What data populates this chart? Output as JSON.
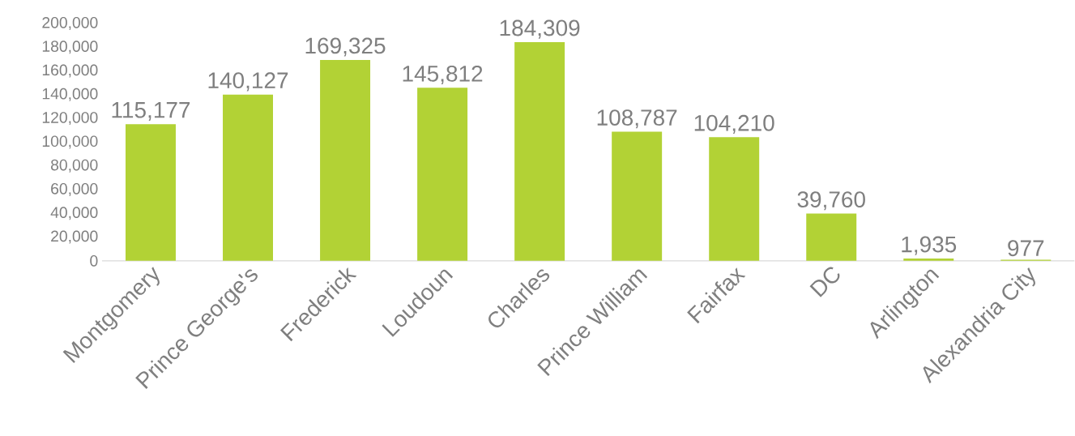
{
  "chart_data": {
    "type": "bar",
    "categories": [
      "Montgomery",
      "Prince George's",
      "Frederick",
      "Loudoun",
      "Charles",
      "Prince William",
      "Fairfax",
      "DC",
      "Arlington",
      "Alexandria City"
    ],
    "values": [
      115177,
      140127,
      169325,
      145812,
      184309,
      108787,
      104210,
      39760,
      1935,
      977
    ],
    "color": "#b2d235",
    "ylim": [
      0,
      200000
    ],
    "yticks": [
      {
        "value": 0,
        "label": "0"
      },
      {
        "value": 20000,
        "label": "20,000"
      },
      {
        "value": 40000,
        "label": "40,000"
      },
      {
        "value": 60000,
        "label": "60,000"
      },
      {
        "value": 80000,
        "label": "80,000"
      },
      {
        "value": 100000,
        "label": "100,000"
      },
      {
        "value": 120000,
        "label": "120,000"
      },
      {
        "value": 140000,
        "label": "140,000"
      },
      {
        "value": 160000,
        "label": "160,000"
      },
      {
        "value": 180000,
        "label": "180,000"
      },
      {
        "value": 200000,
        "label": "200,000"
      }
    ],
    "value_labels": [
      "115,177",
      "140,127",
      "169,325",
      "145,812",
      "184,309",
      "108,787",
      "104,210",
      "39,760",
      "1,935",
      "977"
    ]
  }
}
